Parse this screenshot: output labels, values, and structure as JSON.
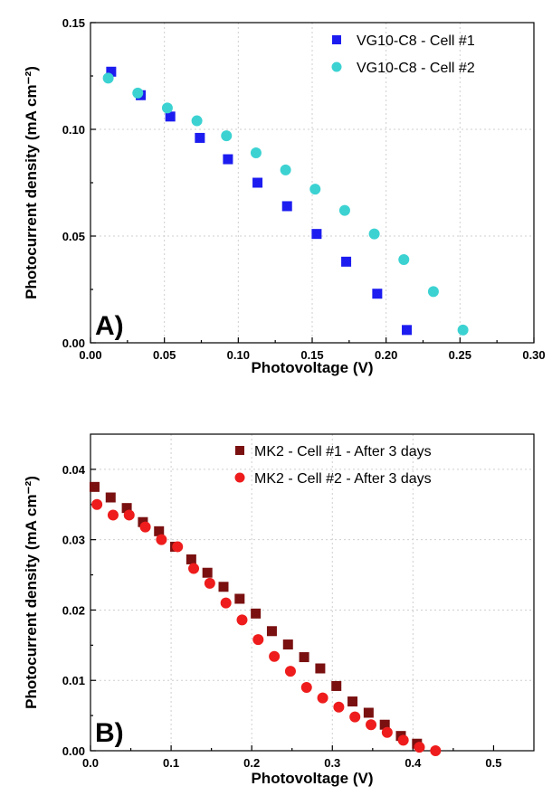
{
  "chart_data": [
    {
      "type": "scatter",
      "panel_label": "A)",
      "xlabel": "Photovoltage (V)",
      "ylabel": "Photocurrent density (mA cm⁻²)",
      "xlim": [
        0,
        0.3
      ],
      "ylim": [
        0,
        0.15
      ],
      "xticks": [
        0.0,
        0.05,
        0.1,
        0.15,
        0.2,
        0.25,
        0.3
      ],
      "xtick_labels": [
        "0.00",
        "0.05",
        "0.10",
        "0.15",
        "0.20",
        "0.25",
        "0.30"
      ],
      "yticks": [
        0.0,
        0.05,
        0.1,
        0.15
      ],
      "ytick_labels": [
        "0.00",
        "0.05",
        "0.10",
        "0.15"
      ],
      "grid": true,
      "legend_position": "top-right",
      "series": [
        {
          "name": "VG10-C8 - Cell #1",
          "marker": "square",
          "color": "#1c1cf0",
          "x": [
            0.014,
            0.034,
            0.054,
            0.074,
            0.093,
            0.113,
            0.133,
            0.153,
            0.173,
            0.194,
            0.214
          ],
          "y": [
            0.127,
            0.116,
            0.106,
            0.096,
            0.086,
            0.075,
            0.064,
            0.051,
            0.038,
            0.023,
            0.006
          ]
        },
        {
          "name": "VG10-C8 - Cell #2",
          "marker": "circle",
          "color": "#3cd2d2",
          "x": [
            0.012,
            0.032,
            0.052,
            0.072,
            0.092,
            0.112,
            0.132,
            0.152,
            0.172,
            0.192,
            0.212,
            0.232,
            0.252
          ],
          "y": [
            0.124,
            0.117,
            0.11,
            0.104,
            0.097,
            0.089,
            0.081,
            0.072,
            0.062,
            0.051,
            0.039,
            0.024,
            0.006
          ]
        }
      ]
    },
    {
      "type": "scatter",
      "panel_label": "B)",
      "xlabel": "Photovoltage (V)",
      "ylabel": "Photocurrent density (mA cm⁻²)",
      "xlim": [
        0,
        0.55
      ],
      "ylim": [
        0,
        0.045
      ],
      "xticks": [
        0.0,
        0.1,
        0.2,
        0.3,
        0.4,
        0.5
      ],
      "xtick_labels": [
        "0.0",
        "0.1",
        "0.2",
        "0.3",
        "0.4",
        "0.5"
      ],
      "yticks": [
        0.0,
        0.01,
        0.02,
        0.03,
        0.04
      ],
      "ytick_labels": [
        "0.00",
        "0.01",
        "0.02",
        "0.03",
        "0.04"
      ],
      "grid": true,
      "legend_position": "top-right",
      "series": [
        {
          "name": "MK2 - Cell #1 - After 3 days",
          "marker": "square",
          "color": "#7a1010",
          "x": [
            0.005,
            0.025,
            0.045,
            0.065,
            0.085,
            0.105,
            0.125,
            0.145,
            0.165,
            0.185,
            0.205,
            0.225,
            0.245,
            0.265,
            0.285,
            0.305,
            0.325,
            0.345,
            0.365,
            0.385,
            0.405
          ],
          "y": [
            0.0375,
            0.036,
            0.0345,
            0.0325,
            0.0312,
            0.029,
            0.0272,
            0.0253,
            0.0233,
            0.0216,
            0.0195,
            0.017,
            0.0151,
            0.0133,
            0.0117,
            0.0092,
            0.007,
            0.0054,
            0.0037,
            0.0021,
            0.001
          ]
        },
        {
          "name": "MK2 - Cell #2 - After 3 days",
          "marker": "circle",
          "color": "#ee1c1c",
          "x": [
            0.008,
            0.028,
            0.048,
            0.068,
            0.088,
            0.108,
            0.128,
            0.148,
            0.168,
            0.188,
            0.208,
            0.228,
            0.248,
            0.268,
            0.288,
            0.308,
            0.328,
            0.348,
            0.368,
            0.388,
            0.408,
            0.428
          ],
          "y": [
            0.035,
            0.0335,
            0.0335,
            0.0318,
            0.03,
            0.029,
            0.0259,
            0.0238,
            0.021,
            0.0186,
            0.0158,
            0.0134,
            0.0113,
            0.009,
            0.0075,
            0.0062,
            0.0048,
            0.0037,
            0.0026,
            0.0015,
            0.0005,
            0.0
          ]
        }
      ]
    }
  ]
}
